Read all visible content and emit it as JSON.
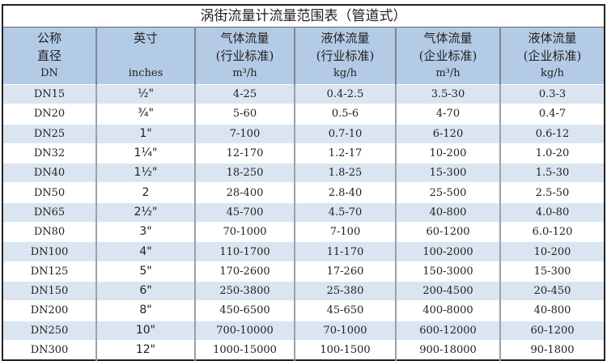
{
  "title": "涡街流量计流量范围表（管道式）",
  "headers": [
    {
      "l1": "公称",
      "l2": "直径",
      "l3": "DN"
    },
    {
      "l1": "英寸",
      "l2": "",
      "l3": "inches"
    },
    {
      "l1": "气体流量",
      "l2": "(行业标准)",
      "l3": "m³/h"
    },
    {
      "l1": "液体流量",
      "l2": "(行业标准)",
      "l3": "kg/h"
    },
    {
      "l1": "气体流量",
      "l2": "(企业标准)",
      "l3": "m³/h"
    },
    {
      "l1": "液体流量",
      "l2": "(企业标准)",
      "l3": "kg/h"
    }
  ],
  "rows": [
    [
      "DN15",
      "½\"",
      "4-25",
      "0.4-2.5",
      "3.5-30",
      "0.3-3"
    ],
    [
      "DN20",
      "¾\"",
      "5-60",
      "0.5-6",
      "4-70",
      "0.4-7"
    ],
    [
      "DN25",
      "1\"",
      "7-100",
      "0.7-10",
      "6-120",
      "0.6-12"
    ],
    [
      "DN32",
      "1¼\"",
      "12-170",
      "1.2-17",
      "10-200",
      "1.0-20"
    ],
    [
      "DN40",
      "1½\"",
      "18-250",
      "1.8-25",
      "15-300",
      "1.5-30"
    ],
    [
      "DN50",
      "2",
      "28-400",
      "2.8-40",
      "25-500",
      "2.5-50"
    ],
    [
      "DN65",
      "2½\"",
      "45-700",
      "4.5-70",
      "40-800",
      "4.0-80"
    ],
    [
      "DN80",
      "3\"",
      "70-1000",
      "7-100",
      "60-1200",
      "6.0-120"
    ],
    [
      "DN100",
      "4\"",
      "110-1700",
      "11-170",
      "100-2000",
      "10-200"
    ],
    [
      "DN125",
      "5\"",
      "170-2600",
      "17-260",
      "150-3000",
      "15-300"
    ],
    [
      "DN150",
      "6\"",
      "250-3800",
      "25-380",
      "200-4500",
      "20-450"
    ],
    [
      "DN200",
      "8\"",
      "450-6500",
      "45-650",
      "400-8000",
      "40-800"
    ],
    [
      "DN250",
      "10\"",
      "700-10000",
      "70-1000",
      "600-12000",
      "60-1200"
    ],
    [
      "DN300",
      "12\"",
      "1000-15000",
      "100-1500",
      "900-18000",
      "90-1800"
    ]
  ],
  "colors": {
    "header_bg": "#b4cbe6",
    "stripe_bg": "#dbe5f2"
  }
}
